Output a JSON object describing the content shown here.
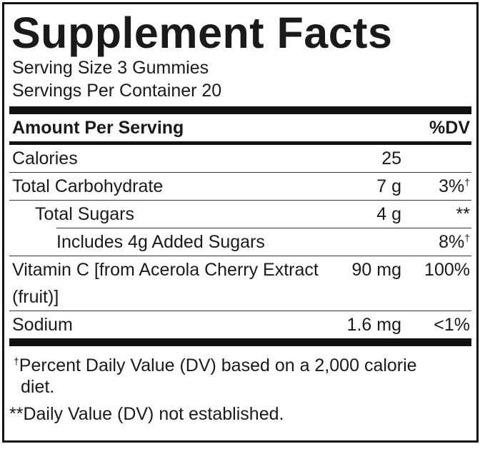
{
  "title": "Supplement Facts",
  "serving": [
    "Serving Size 3 Gummies",
    "Servings Per Container 20"
  ],
  "header": {
    "amount": "Amount Per Serving",
    "dv": "%DV"
  },
  "rows": [
    {
      "name": "Calories",
      "amount": "25"
    },
    {
      "name": "Total Carbohydrate",
      "amount": "7 g",
      "dv": "3%",
      "dv_mark": "†"
    },
    {
      "name": "Total Sugars",
      "amount": "4 g",
      "dv": "**"
    },
    {
      "name": "Includes 4g Added Sugars",
      "dv": "8%",
      "dv_mark": "†"
    },
    {
      "name": "Vitamin C [from Acerola Cherry Extract (fruit)]",
      "amount": "90 mg",
      "dv": "100%"
    },
    {
      "name": "Sodium",
      "amount": "1.6 mg",
      "dv": "<1%"
    }
  ],
  "footnotes": [
    {
      "mark": "†",
      "text": "Percent Daily Value (DV) based on a 2,000 calorie diet."
    },
    {
      "text": "**Daily Value (DV) not established."
    }
  ]
}
